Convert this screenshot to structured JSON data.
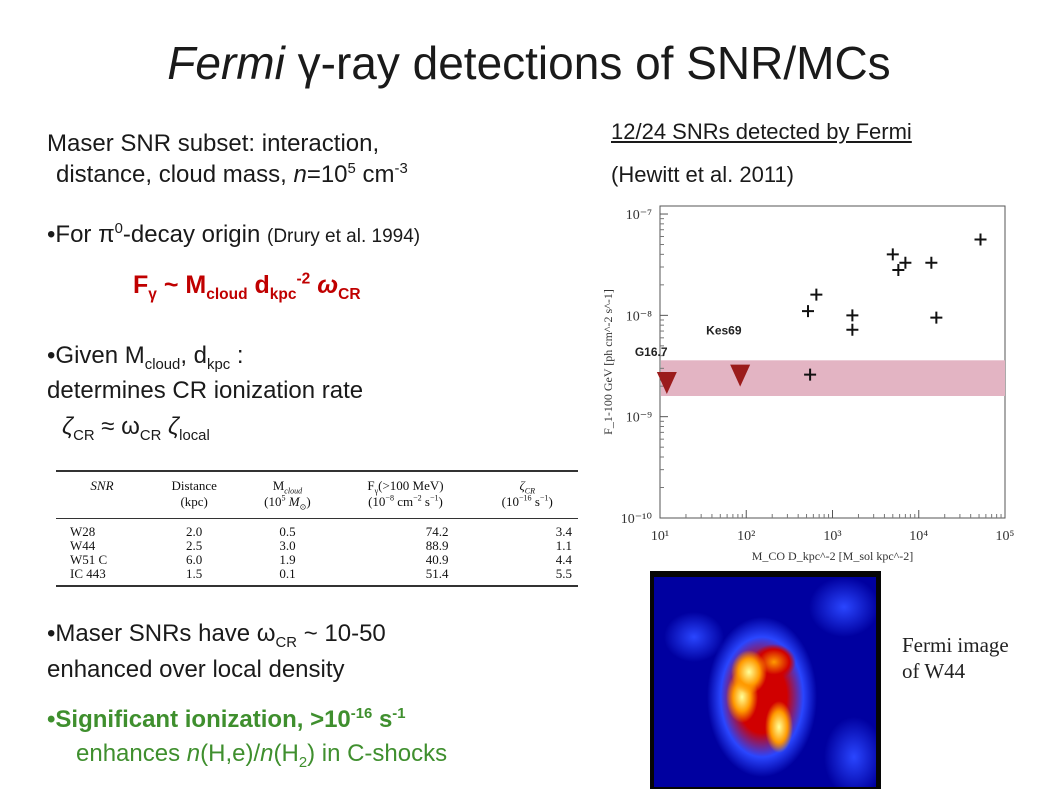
{
  "title": {
    "italic": "Fermi",
    "rest": " γ-ray detections of SNR/MCs"
  },
  "left": {
    "intro_line1": "Maser SNR subset: interaction,",
    "intro_line2_a": "distance, cloud mass, ",
    "intro_line2_n": "n",
    "intro_line2_b": "=10",
    "intro_line2_exp": "5",
    "intro_line2_c": " cm",
    "intro_line2_exp2": "-3",
    "bullet1_a": "For π",
    "bullet1_sup": "0",
    "bullet1_b": "-decay origin ",
    "bullet1_ref": "(Drury et al. 1994)",
    "formula": {
      "F": "F",
      "g": "γ",
      "approx": " ~ M",
      "cloud": "cloud",
      "d": " d",
      "kpc": "kpc",
      "exp": "-2",
      "w": " ω",
      "cr": "CR"
    },
    "bullet2_a": "Given M",
    "bullet2_sub1": "cloud",
    "bullet2_b": ", d",
    "bullet2_sub2": "kpc",
    "bullet2_c": " :",
    "bullet2_line2": "determines CR ionization rate",
    "zeta": {
      "z": "ζ",
      "cr": "CR",
      "mid": " ≈ ω",
      "cr2": "CR",
      "z2": "  ζ",
      "local": "local"
    },
    "bullet3_a": "Maser SNRs have ω",
    "bullet3_sub": "CR",
    "bullet3_b": " ~ 10-50",
    "bullet3_line2": "enhanced over local density",
    "bullet4_a": "Significant ionization, >10",
    "bullet4_exp": "-16",
    "bullet4_b": " s",
    "bullet4_exp2": "-1",
    "bullet4_line2_a": "enhances ",
    "bullet4_line2_n": "n",
    "bullet4_line2_b": "(H,e)/",
    "bullet4_line2_n2": "n",
    "bullet4_line2_c": "(H",
    "bullet4_line2_sub": "2",
    "bullet4_line2_d": ") in C-shocks"
  },
  "table": {
    "headers": [
      {
        "l1": "SNR",
        "l2": ""
      },
      {
        "l1": "Distance",
        "l2": "(kpc)"
      },
      {
        "l1": "M",
        "l1sub": "cloud",
        "l2": "(10",
        "l2sup": "5",
        "l2b": " M",
        "l2sub": "⊙",
        "l2c": ")"
      },
      {
        "l1": "F",
        "l1sub": "γ",
        "l1b": "(>100 MeV)",
        "l2": "(10",
        "l2sup": "−8",
        "l2b": " cm",
        "l2sup2": "−2",
        "l2c": " s",
        "l2sup3": "−1",
        "l2d": ")"
      },
      {
        "l1": "ζ",
        "l1sub": "CR",
        "l2": "(10",
        "l2sup": "−16",
        "l2b": " s",
        "l2sup2": "−1",
        "l2c": ")"
      }
    ],
    "rows": [
      [
        "W28",
        "2.0",
        "0.5",
        "74.2",
        "3.4"
      ],
      [
        "W44",
        "2.5",
        "3.0",
        "88.9",
        "1.1"
      ],
      [
        "W51 C",
        "6.0",
        "1.9",
        "40.9",
        "4.4"
      ],
      [
        "IC 443",
        "1.5",
        "0.1",
        "51.4",
        "5.5"
      ]
    ]
  },
  "right": {
    "header1": "12/24 SNRs detected by Fermi",
    "header2": "(Hewitt et al. 2011)",
    "caption1": "Fermi image",
    "caption2": "of W44"
  },
  "chart_data": {
    "type": "scatter",
    "xlabel": "M_CO D_kpc^-2 [M_sol kpc^-2]",
    "ylabel": "F_1-100 GeV [ph cm^-2 s^-1]",
    "xscale": "log",
    "yscale": "log",
    "xlim": [
      10,
      100000
    ],
    "ylim": [
      1e-10,
      1.2e-07
    ],
    "xticks": [
      "10¹",
      "10²",
      "10³",
      "10⁴",
      "10⁵"
    ],
    "yticks": [
      "10⁻¹⁰",
      "10⁻⁹",
      "10⁻⁸",
      "10⁻⁷"
    ],
    "band": {
      "ymin": 1.6e-09,
      "ymax": 3.6e-09,
      "color": "#e3b4c3"
    },
    "detections": [
      {
        "x": 7000,
        "y": 3.3e-08
      },
      {
        "x": 5000,
        "y": 4e-08
      },
      {
        "x": 5800,
        "y": 2.8e-08
      },
      {
        "x": 14000,
        "y": 3.3e-08
      },
      {
        "x": 52000,
        "y": 5.6e-08
      },
      {
        "x": 650,
        "y": 1.6e-08
      },
      {
        "x": 520,
        "y": 1.1e-08
      },
      {
        "x": 1700,
        "y": 1e-08
      },
      {
        "x": 16000,
        "y": 9.5e-09
      },
      {
        "x": 1700,
        "y": 7.2e-09
      },
      {
        "x": 550,
        "y": 2.6e-09
      }
    ],
    "upper_limits": [
      {
        "name": "G16.7",
        "x": 12,
        "y": 2.2e-09
      },
      {
        "name": "Kes69",
        "x": 85,
        "y": 2.6e-09
      }
    ],
    "marker_color": "#9b1c1c"
  },
  "heatmap": {
    "colors": [
      "#0000a0",
      "#2a46ff",
      "#d00000",
      "#ff9a00",
      "#ffff99"
    ]
  }
}
